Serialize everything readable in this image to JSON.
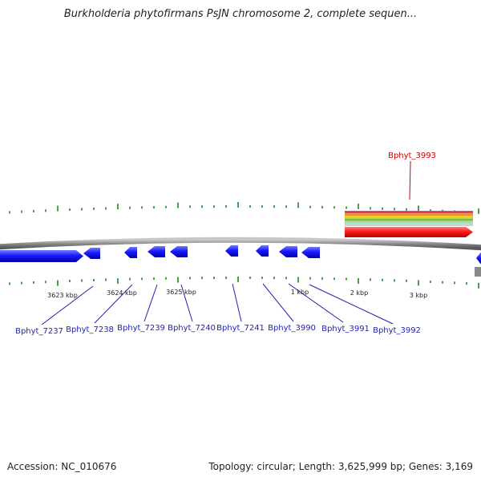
{
  "title": "Burkholderia phytofirmans PsJN chromosome 2, complete sequen...",
  "footer": {
    "accession": "Accession: NC_010676",
    "topology": "Topology: circular; Length: 3,625,999 bp; Genes: 3,169"
  },
  "colors": {
    "gene_forward": "#0000ee",
    "gene_highlight": "#ee0000",
    "label_forward": "#1f1fb3",
    "label_highlight": "#cc0000",
    "tick": "#1a8a1a",
    "backbone": "#888888",
    "track_stripes": [
      "#e8366e",
      "#f08a24",
      "#e8d21c",
      "#6cc04a",
      "#a8d8a8",
      "#cfcfcf"
    ]
  },
  "scale_labels": [
    "3623 kbp",
    "3624 kbp",
    "3625 kbp",
    "1 kbp",
    "2 kbp",
    "3 kbp"
  ],
  "genes": [
    {
      "label": "Bphyt_7237",
      "strand": "forward"
    },
    {
      "label": "Bphyt_7238",
      "strand": "reverse"
    },
    {
      "label": "",
      "strand": "reverse"
    },
    {
      "label": "Bphyt_7239",
      "strand": "reverse"
    },
    {
      "label": "Bphyt_7240",
      "strand": "reverse"
    },
    {
      "label": "Bphyt_7241",
      "strand": "reverse"
    },
    {
      "label": "Bphyt_3990",
      "strand": "reverse"
    },
    {
      "label": "Bphyt_3991",
      "strand": "reverse"
    },
    {
      "label": "Bphyt_3992",
      "strand": "reverse"
    },
    {
      "label": "Bphyt_3993",
      "strand": "forward",
      "highlighted": true
    },
    {
      "label": "",
      "strand": "reverse"
    }
  ]
}
